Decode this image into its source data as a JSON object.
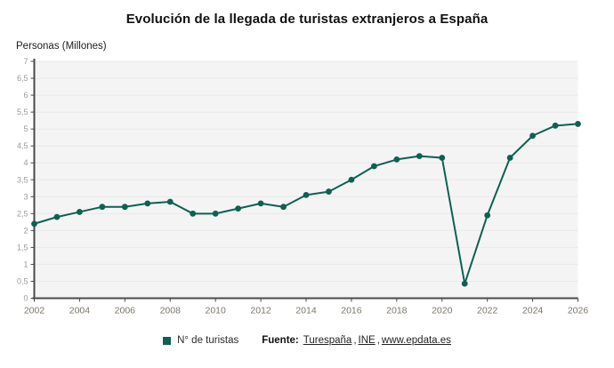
{
  "header": {
    "title": "Evolución de la llegada de turistas extranjeros a España",
    "y_unit_label": "Personas (Millones)"
  },
  "legend": {
    "series_label": "N° de turistas"
  },
  "source": {
    "prefix": "Fuente:",
    "links": [
      "Turespaña",
      "INE",
      "www.epdata.es"
    ],
    "separator": ","
  },
  "colors": {
    "series": "#0d6152",
    "plot_bg": "#f4f4f4",
    "grid": "#e8e8e8",
    "axis": "#4a4a4a",
    "y_tick_label": "#9a9a9a",
    "x_tick_label": "#7c766c"
  },
  "chart_data": {
    "type": "line",
    "title": "Evolución de la llegada de turistas extranjeros a España",
    "ylabel": "Personas (Millones)",
    "xlabel": "",
    "grid": true,
    "legend_position": "bottom",
    "ylim": [
      0,
      7
    ],
    "ytick_step": 0.5,
    "yticklabels": [
      "0",
      "0,5",
      "1",
      "1,5",
      "2",
      "2,5",
      "3",
      "3,5",
      "4",
      "4,5",
      "5",
      "5,5",
      "6",
      "6,5",
      "7"
    ],
    "xticks": [
      2002,
      2004,
      2006,
      2008,
      2010,
      2012,
      2014,
      2016,
      2018,
      2020,
      2022,
      2024,
      2026
    ],
    "x": [
      2002,
      2003,
      2004,
      2005,
      2006,
      2007,
      2008,
      2009,
      2010,
      2011,
      2012,
      2013,
      2014,
      2015,
      2016,
      2017,
      2018,
      2019,
      2020,
      2021,
      2022,
      2023,
      2024,
      2025,
      2026
    ],
    "series": [
      {
        "name": "N° de turistas",
        "values": [
          2.2,
          2.4,
          2.55,
          2.7,
          2.7,
          2.8,
          2.85,
          2.5,
          2.5,
          2.65,
          2.8,
          2.7,
          3.05,
          3.15,
          3.5,
          3.9,
          4.1,
          4.2,
          4.15,
          0.43,
          2.45,
          4.15,
          4.8,
          5.1,
          5.15
        ]
      }
    ]
  }
}
